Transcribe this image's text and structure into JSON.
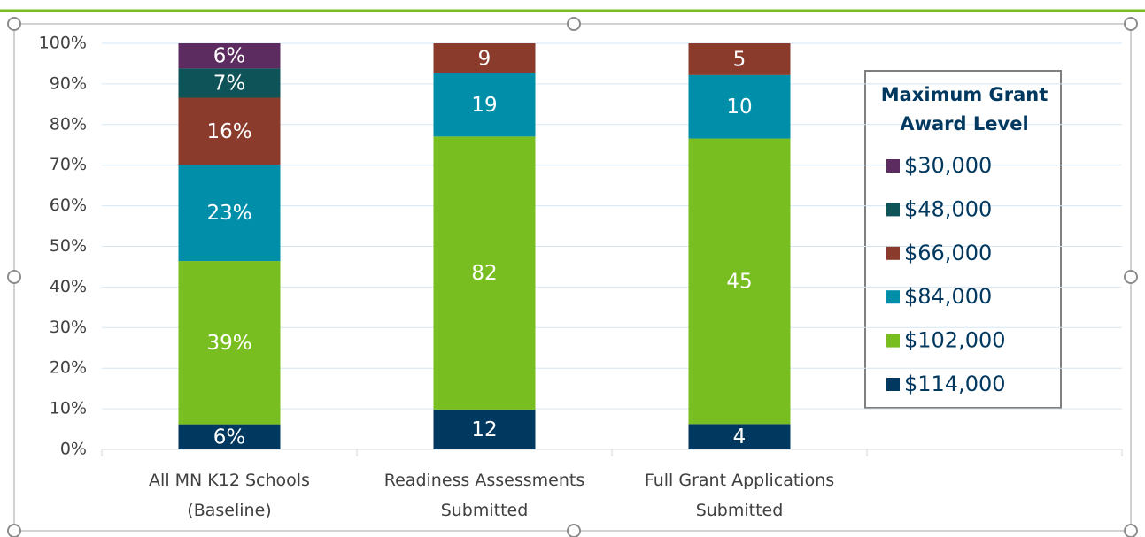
{
  "chart_data": {
    "type": "bar",
    "stacking": "percent",
    "categories": [
      "All MN K12 Schools\n(Baseline)",
      "Readiness Assessments\nSubmitted",
      "Full Grant Applications\nSubmitted",
      null
    ],
    "series": [
      {
        "name": "$114,000",
        "color": "#00385f",
        "values": [
          6,
          12,
          4,
          null
        ],
        "value_labels": [
          "6%",
          "12",
          "4",
          null
        ]
      },
      {
        "name": "$102,000",
        "color": "#78be21",
        "values": [
          39,
          82,
          45,
          null
        ],
        "value_labels": [
          "39%",
          "82",
          "45",
          null
        ]
      },
      {
        "name": "$84,000",
        "color": "#008ea8",
        "values": [
          23,
          19,
          10,
          null
        ],
        "value_labels": [
          "23%",
          "19",
          "10",
          null
        ]
      },
      {
        "name": "$66,000",
        "color": "#8a3b2c",
        "values": [
          16,
          9,
          5,
          null
        ],
        "value_labels": [
          "16%",
          "9",
          "5",
          null
        ]
      },
      {
        "name": "$48,000",
        "color": "#0e5358",
        "values": [
          7,
          null,
          null,
          null
        ],
        "value_labels": [
          "7%",
          null,
          null,
          null
        ]
      },
      {
        "name": "$30,000",
        "color": "#5c2b5f",
        "values": [
          6,
          null,
          null,
          null
        ],
        "value_labels": [
          "6%",
          null,
          null,
          null
        ]
      }
    ],
    "legend_title": "Maximum Grant\nAward Level",
    "legend": "right",
    "ylim": [
      0,
      100
    ],
    "yticks": [
      {
        "value": 0,
        "label": "0%"
      },
      {
        "value": 10,
        "label": "10%"
      },
      {
        "value": 20,
        "label": "20%"
      },
      {
        "value": 30,
        "label": "30%"
      },
      {
        "value": 40,
        "label": "40%"
      },
      {
        "value": 50,
        "label": "50%"
      },
      {
        "value": 60,
        "label": "60%"
      },
      {
        "value": 70,
        "label": "70%"
      },
      {
        "value": 80,
        "label": "80%"
      },
      {
        "value": 90,
        "label": "90%"
      },
      {
        "value": 100,
        "label": "100%"
      }
    ],
    "grid": true
  }
}
